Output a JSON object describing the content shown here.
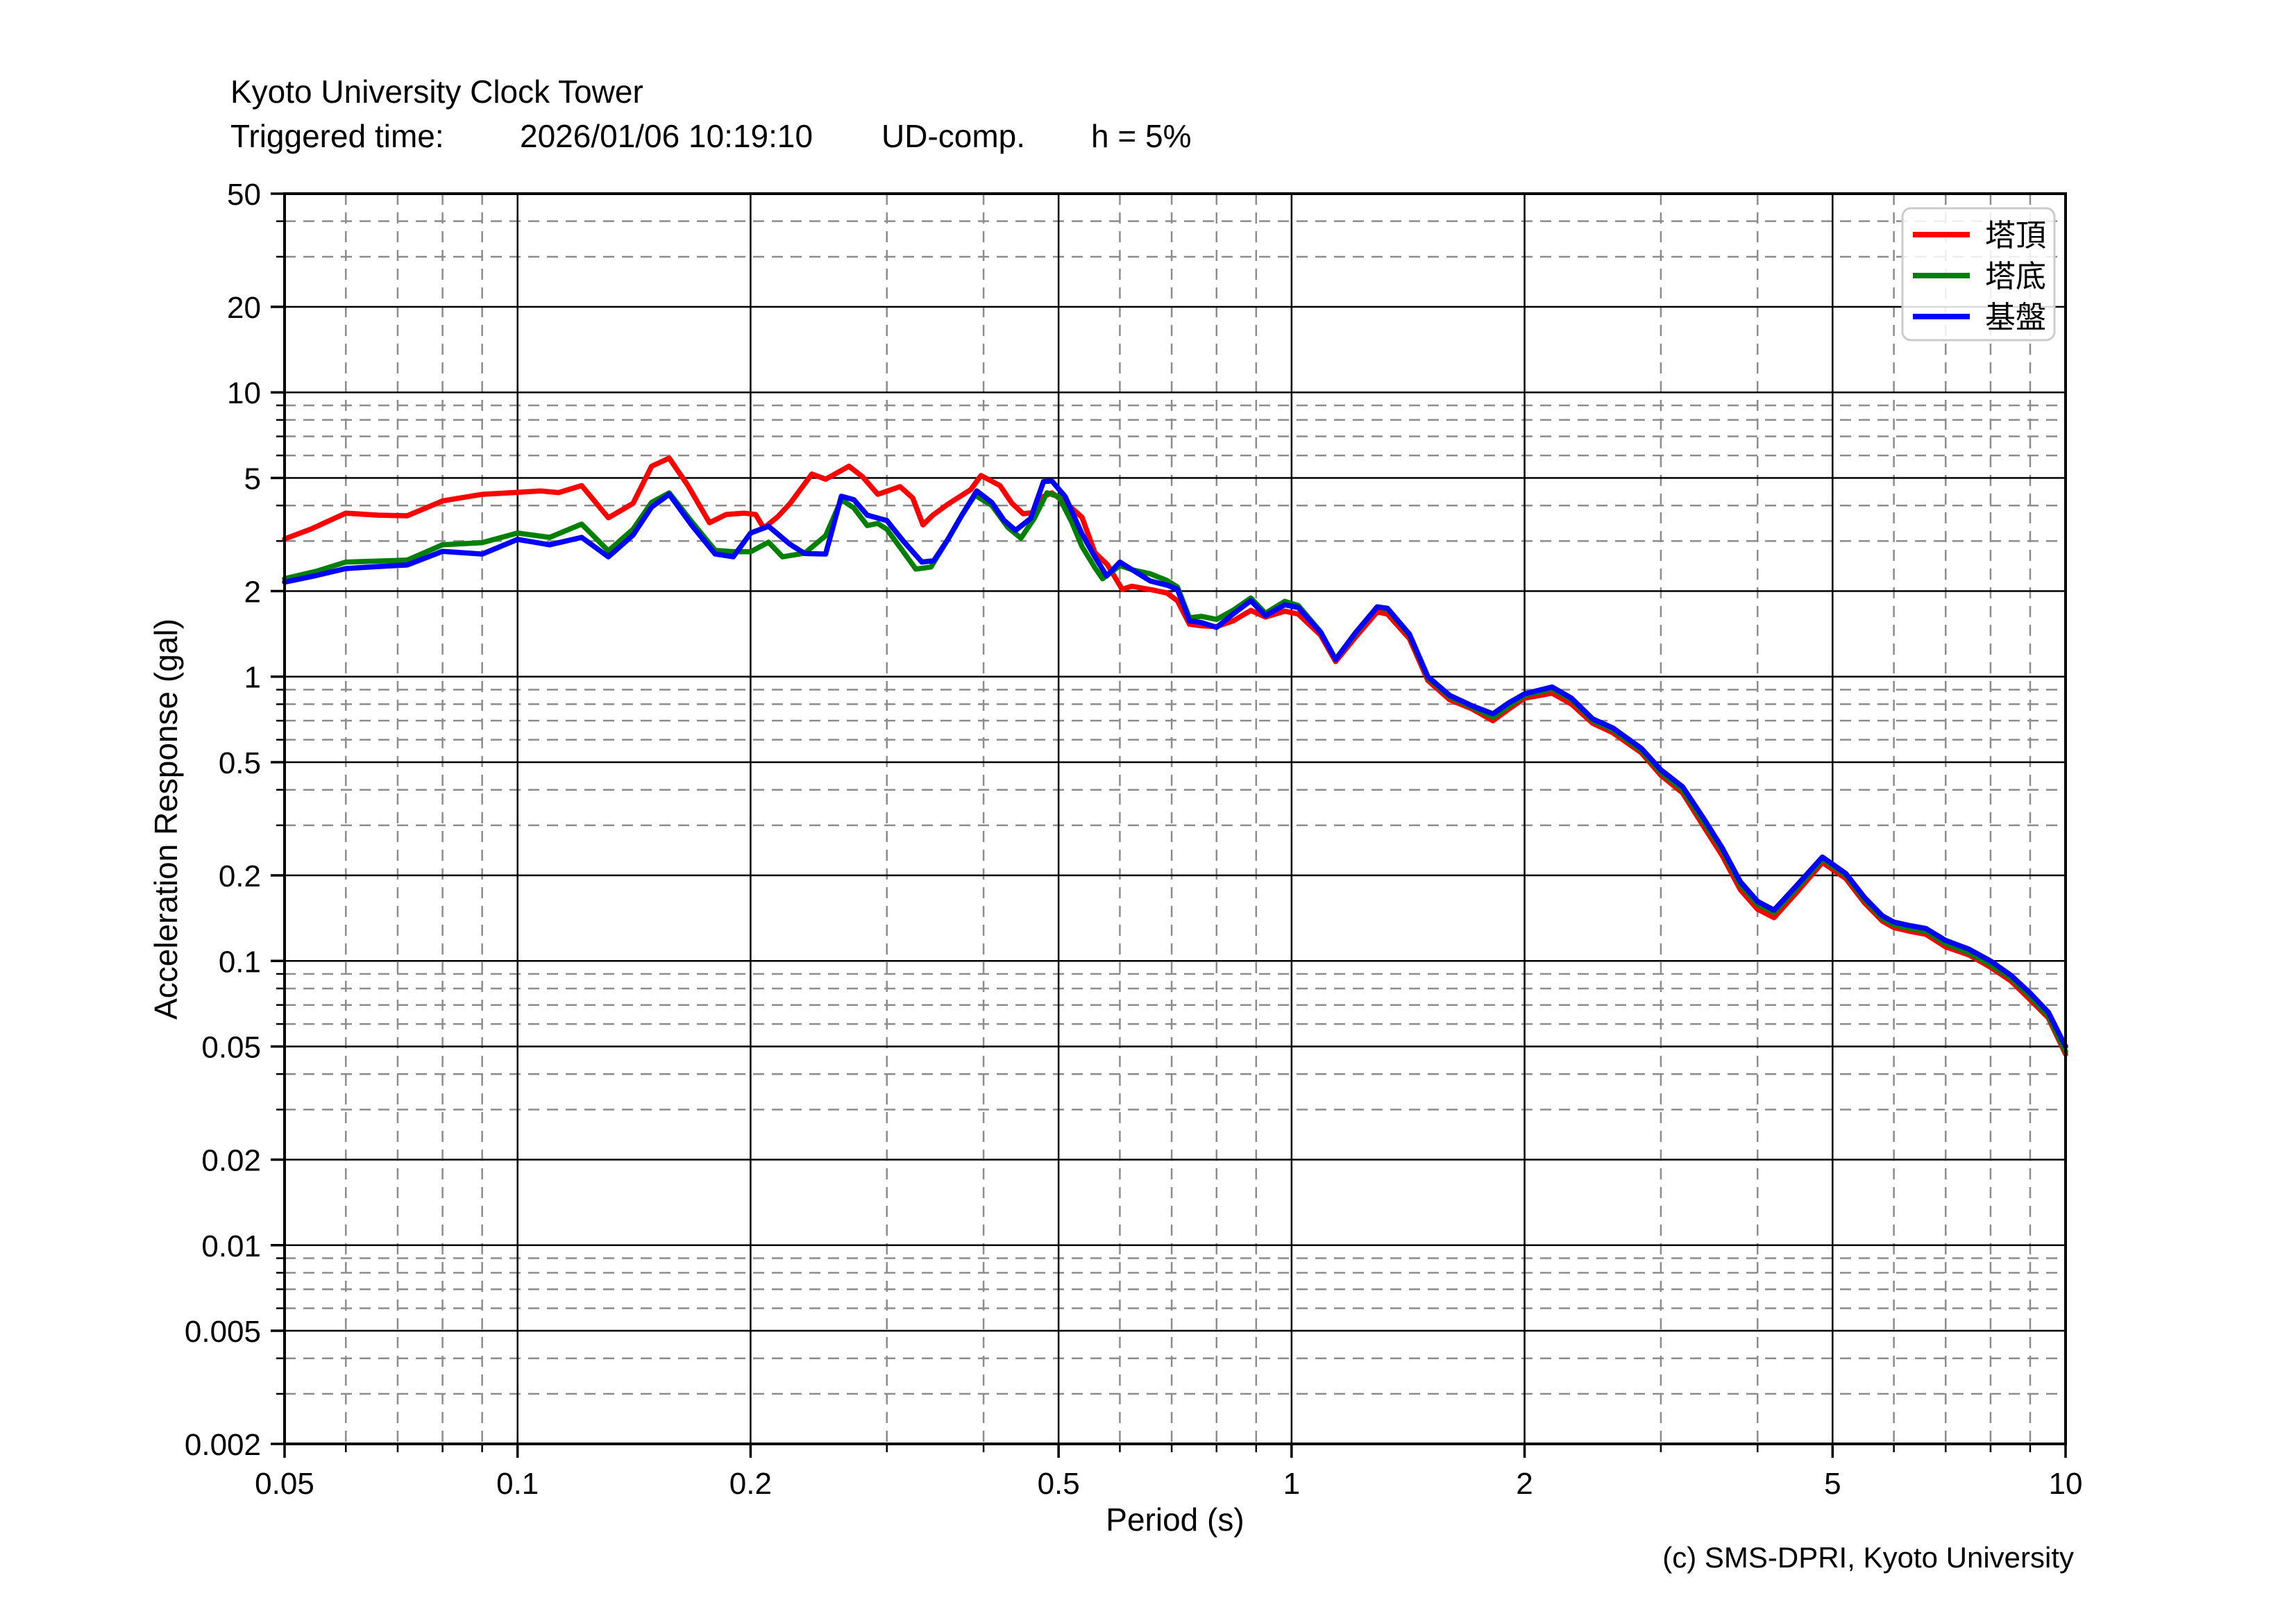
{
  "header": {
    "title": "Kyoto University Clock Tower",
    "triggered_label": "Triggered time:",
    "triggered_time": "2026/01/06 10:19:10",
    "component": "UD-comp.",
    "damping": "h = 5%"
  },
  "footer": {
    "copyright": "(c) SMS-DPRI, Kyoto University"
  },
  "colors": {
    "series_top": "#ff0000",
    "series_bottom": "#008000",
    "series_base": "#0000ff",
    "major_grid": "#000000",
    "minor_grid": "#8c8c8c",
    "legend_border": "#cccccc",
    "background": "#ffffff"
  },
  "chart_data": {
    "type": "line",
    "title": "Kyoto University Clock Tower",
    "xlabel": "Period (s)",
    "ylabel": "Acceleration Response (gal)",
    "x_scale": "log",
    "y_scale": "log",
    "xlim": [
      0.05,
      10
    ],
    "ylim": [
      0.002,
      50
    ],
    "grid": "major solid, minor dashed",
    "legend_position": "upper right",
    "x_major_ticks": [
      0.05,
      0.1,
      0.2,
      0.5,
      1,
      2,
      5,
      10
    ],
    "x_major_labels": [
      "0.05",
      "0.1",
      "0.2",
      "0.5",
      "1",
      "2",
      "5",
      "10"
    ],
    "x_minor_ticks": [
      0.06,
      0.07,
      0.08,
      0.09,
      0.3,
      0.4,
      0.6,
      0.7,
      0.8,
      0.9,
      3,
      4,
      6,
      7,
      8,
      9
    ],
    "y_major_ticks": [
      50,
      20,
      10,
      5,
      2,
      1,
      0.5,
      0.2,
      0.1,
      0.05,
      0.02,
      0.01,
      0.005,
      0.002
    ],
    "y_major_labels": [
      "50",
      "20",
      "10",
      "5",
      "2",
      "1",
      "0.5",
      "0.2",
      "0.1",
      "0.05",
      "0.02",
      "0.01",
      "0.005",
      "0.002"
    ],
    "y_minor_ticks": [
      30,
      40,
      6,
      7,
      8,
      9,
      3,
      4,
      0.6,
      0.7,
      0.8,
      0.9,
      0.3,
      0.4,
      0.06,
      0.07,
      0.08,
      0.09,
      0.03,
      0.04,
      0.006,
      0.007,
      0.008,
      0.009,
      0.003,
      0.004
    ],
    "series": [
      {
        "name": "塔頂",
        "color": "#ff0000",
        "points": [
          [
            0.05,
            3.05
          ],
          [
            0.054,
            3.3
          ],
          [
            0.06,
            3.76
          ],
          [
            0.066,
            3.7
          ],
          [
            0.072,
            3.68
          ],
          [
            0.08,
            4.15
          ],
          [
            0.09,
            4.38
          ],
          [
            0.1,
            4.45
          ],
          [
            0.107,
            4.5
          ],
          [
            0.113,
            4.44
          ],
          [
            0.121,
            4.7
          ],
          [
            0.131,
            3.62
          ],
          [
            0.141,
            4.07
          ],
          [
            0.149,
            5.5
          ],
          [
            0.157,
            5.87
          ],
          [
            0.166,
            4.7
          ],
          [
            0.177,
            3.48
          ],
          [
            0.186,
            3.72
          ],
          [
            0.196,
            3.76
          ],
          [
            0.203,
            3.72
          ],
          [
            0.208,
            3.33
          ],
          [
            0.217,
            3.66
          ],
          [
            0.225,
            4.07
          ],
          [
            0.24,
            5.16
          ],
          [
            0.25,
            4.95
          ],
          [
            0.268,
            5.5
          ],
          [
            0.279,
            5.05
          ],
          [
            0.292,
            4.38
          ],
          [
            0.312,
            4.66
          ],
          [
            0.324,
            4.25
          ],
          [
            0.334,
            3.42
          ],
          [
            0.344,
            3.7
          ],
          [
            0.36,
            4.05
          ],
          [
            0.385,
            4.55
          ],
          [
            0.397,
            5.1
          ],
          [
            0.42,
            4.7
          ],
          [
            0.435,
            4.08
          ],
          [
            0.45,
            3.74
          ],
          [
            0.463,
            3.78
          ],
          [
            0.478,
            4.3
          ],
          [
            0.49,
            4.43
          ],
          [
            0.51,
            4.1
          ],
          [
            0.536,
            3.64
          ],
          [
            0.557,
            2.73
          ],
          [
            0.578,
            2.48
          ],
          [
            0.604,
            2.03
          ],
          [
            0.622,
            2.08
          ],
          [
            0.64,
            2.05
          ],
          [
            0.66,
            2.02
          ],
          [
            0.69,
            1.97
          ],
          [
            0.712,
            1.85
          ],
          [
            0.738,
            1.53
          ],
          [
            0.765,
            1.51
          ],
          [
            0.8,
            1.5
          ],
          [
            0.84,
            1.57
          ],
          [
            0.886,
            1.71
          ],
          [
            0.925,
            1.62
          ],
          [
            0.98,
            1.7
          ],
          [
            1.02,
            1.66
          ],
          [
            1.09,
            1.4
          ],
          [
            1.14,
            1.13
          ],
          [
            1.21,
            1.38
          ],
          [
            1.29,
            1.69
          ],
          [
            1.33,
            1.66
          ],
          [
            1.42,
            1.36
          ],
          [
            1.5,
            0.97
          ],
          [
            1.6,
            0.83
          ],
          [
            1.71,
            0.77
          ],
          [
            1.82,
            0.7
          ],
          [
            1.91,
            0.77
          ],
          [
            2.0,
            0.84
          ],
          [
            2.17,
            0.875
          ],
          [
            2.3,
            0.8
          ],
          [
            2.45,
            0.685
          ],
          [
            2.6,
            0.635
          ],
          [
            2.83,
            0.54
          ],
          [
            3.0,
            0.45
          ],
          [
            3.2,
            0.39
          ],
          [
            3.4,
            0.3
          ],
          [
            3.6,
            0.235
          ],
          [
            3.8,
            0.178
          ],
          [
            4.0,
            0.152
          ],
          [
            4.2,
            0.142
          ],
          [
            4.5,
            0.175
          ],
          [
            4.85,
            0.222
          ],
          [
            5.2,
            0.195
          ],
          [
            5.5,
            0.16
          ],
          [
            5.8,
            0.138
          ],
          [
            6.0,
            0.131
          ],
          [
            6.3,
            0.127
          ],
          [
            6.6,
            0.124
          ],
          [
            7.0,
            0.112
          ],
          [
            7.5,
            0.105
          ],
          [
            8.0,
            0.095
          ],
          [
            8.5,
            0.085
          ],
          [
            9.0,
            0.073
          ],
          [
            9.5,
            0.063
          ],
          [
            10,
            0.047
          ]
        ]
      },
      {
        "name": "塔底",
        "color": "#008000",
        "points": [
          [
            0.05,
            2.21
          ],
          [
            0.055,
            2.35
          ],
          [
            0.06,
            2.53
          ],
          [
            0.066,
            2.55
          ],
          [
            0.072,
            2.57
          ],
          [
            0.08,
            2.91
          ],
          [
            0.09,
            2.96
          ],
          [
            0.1,
            3.2
          ],
          [
            0.11,
            3.09
          ],
          [
            0.121,
            3.44
          ],
          [
            0.131,
            2.77
          ],
          [
            0.141,
            3.3
          ],
          [
            0.149,
            4.1
          ],
          [
            0.157,
            4.43
          ],
          [
            0.168,
            3.5
          ],
          [
            0.18,
            2.78
          ],
          [
            0.19,
            2.75
          ],
          [
            0.2,
            2.75
          ],
          [
            0.211,
            2.97
          ],
          [
            0.22,
            2.64
          ],
          [
            0.235,
            2.72
          ],
          [
            0.25,
            3.13
          ],
          [
            0.262,
            4.19
          ],
          [
            0.272,
            3.92
          ],
          [
            0.283,
            3.4
          ],
          [
            0.292,
            3.46
          ],
          [
            0.3,
            3.3
          ],
          [
            0.315,
            2.75
          ],
          [
            0.327,
            2.39
          ],
          [
            0.342,
            2.43
          ],
          [
            0.36,
            3.05
          ],
          [
            0.375,
            3.7
          ],
          [
            0.39,
            4.35
          ],
          [
            0.41,
            4.0
          ],
          [
            0.43,
            3.35
          ],
          [
            0.447,
            3.07
          ],
          [
            0.465,
            3.6
          ],
          [
            0.483,
            4.43
          ],
          [
            0.5,
            4.3
          ],
          [
            0.52,
            3.5
          ],
          [
            0.536,
            2.87
          ],
          [
            0.557,
            2.42
          ],
          [
            0.57,
            2.21
          ],
          [
            0.6,
            2.46
          ],
          [
            0.625,
            2.37
          ],
          [
            0.657,
            2.3
          ],
          [
            0.69,
            2.18
          ],
          [
            0.712,
            2.07
          ],
          [
            0.738,
            1.61
          ],
          [
            0.765,
            1.63
          ],
          [
            0.8,
            1.59
          ],
          [
            0.84,
            1.71
          ],
          [
            0.886,
            1.89
          ],
          [
            0.925,
            1.67
          ],
          [
            0.98,
            1.84
          ],
          [
            1.02,
            1.78
          ],
          [
            1.09,
            1.44
          ],
          [
            1.14,
            1.15
          ],
          [
            1.21,
            1.42
          ],
          [
            1.29,
            1.76
          ],
          [
            1.33,
            1.73
          ],
          [
            1.42,
            1.4
          ],
          [
            1.5,
            0.99
          ],
          [
            1.6,
            0.85
          ],
          [
            1.71,
            0.78
          ],
          [
            1.82,
            0.72
          ],
          [
            1.91,
            0.79
          ],
          [
            2.0,
            0.86
          ],
          [
            2.17,
            0.905
          ],
          [
            2.3,
            0.83
          ],
          [
            2.45,
            0.7
          ],
          [
            2.6,
            0.65
          ],
          [
            2.83,
            0.55
          ],
          [
            3.0,
            0.46
          ],
          [
            3.2,
            0.4
          ],
          [
            3.4,
            0.31
          ],
          [
            3.6,
            0.245
          ],
          [
            3.8,
            0.185
          ],
          [
            4.0,
            0.158
          ],
          [
            4.2,
            0.148
          ],
          [
            4.5,
            0.181
          ],
          [
            4.85,
            0.228
          ],
          [
            5.2,
            0.2
          ],
          [
            5.5,
            0.164
          ],
          [
            5.8,
            0.141
          ],
          [
            6.0,
            0.134
          ],
          [
            6.3,
            0.13
          ],
          [
            6.6,
            0.127
          ],
          [
            7.0,
            0.115
          ],
          [
            7.5,
            0.107
          ],
          [
            8.0,
            0.097
          ],
          [
            8.5,
            0.087
          ],
          [
            9.0,
            0.075
          ],
          [
            9.5,
            0.064
          ],
          [
            10,
            0.048
          ]
        ]
      },
      {
        "name": "基盤",
        "color": "#0000ff",
        "points": [
          [
            0.05,
            2.15
          ],
          [
            0.055,
            2.27
          ],
          [
            0.06,
            2.4
          ],
          [
            0.066,
            2.44
          ],
          [
            0.072,
            2.47
          ],
          [
            0.08,
            2.76
          ],
          [
            0.09,
            2.7
          ],
          [
            0.1,
            3.04
          ],
          [
            0.11,
            2.91
          ],
          [
            0.121,
            3.09
          ],
          [
            0.131,
            2.64
          ],
          [
            0.141,
            3.15
          ],
          [
            0.149,
            3.95
          ],
          [
            0.157,
            4.38
          ],
          [
            0.168,
            3.4
          ],
          [
            0.18,
            2.7
          ],
          [
            0.19,
            2.64
          ],
          [
            0.2,
            3.2
          ],
          [
            0.211,
            3.38
          ],
          [
            0.225,
            2.92
          ],
          [
            0.235,
            2.71
          ],
          [
            0.25,
            2.7
          ],
          [
            0.262,
            4.31
          ],
          [
            0.272,
            4.19
          ],
          [
            0.283,
            3.7
          ],
          [
            0.3,
            3.54
          ],
          [
            0.315,
            3.0
          ],
          [
            0.333,
            2.53
          ],
          [
            0.345,
            2.56
          ],
          [
            0.36,
            3.05
          ],
          [
            0.375,
            3.7
          ],
          [
            0.392,
            4.5
          ],
          [
            0.41,
            4.1
          ],
          [
            0.425,
            3.55
          ],
          [
            0.44,
            3.27
          ],
          [
            0.46,
            3.6
          ],
          [
            0.478,
            4.85
          ],
          [
            0.49,
            4.88
          ],
          [
            0.51,
            4.3
          ],
          [
            0.536,
            3.18
          ],
          [
            0.557,
            2.64
          ],
          [
            0.577,
            2.26
          ],
          [
            0.6,
            2.53
          ],
          [
            0.625,
            2.36
          ],
          [
            0.657,
            2.17
          ],
          [
            0.69,
            2.1
          ],
          [
            0.712,
            2.03
          ],
          [
            0.738,
            1.57
          ],
          [
            0.765,
            1.55
          ],
          [
            0.8,
            1.49
          ],
          [
            0.84,
            1.66
          ],
          [
            0.886,
            1.85
          ],
          [
            0.925,
            1.64
          ],
          [
            0.98,
            1.79
          ],
          [
            1.02,
            1.75
          ],
          [
            1.09,
            1.43
          ],
          [
            1.14,
            1.15
          ],
          [
            1.21,
            1.43
          ],
          [
            1.29,
            1.76
          ],
          [
            1.33,
            1.74
          ],
          [
            1.42,
            1.41
          ],
          [
            1.5,
            1.0
          ],
          [
            1.6,
            0.86
          ],
          [
            1.71,
            0.79
          ],
          [
            1.82,
            0.74
          ],
          [
            1.91,
            0.81
          ],
          [
            2.0,
            0.87
          ],
          [
            2.17,
            0.92
          ],
          [
            2.3,
            0.84
          ],
          [
            2.45,
            0.71
          ],
          [
            2.6,
            0.66
          ],
          [
            2.83,
            0.56
          ],
          [
            3.0,
            0.47
          ],
          [
            3.2,
            0.41
          ],
          [
            3.4,
            0.32
          ],
          [
            3.6,
            0.25
          ],
          [
            3.8,
            0.19
          ],
          [
            4.0,
            0.162
          ],
          [
            4.2,
            0.151
          ],
          [
            4.5,
            0.185
          ],
          [
            4.85,
            0.232
          ],
          [
            5.2,
            0.203
          ],
          [
            5.5,
            0.167
          ],
          [
            5.8,
            0.144
          ],
          [
            6.0,
            0.137
          ],
          [
            6.3,
            0.133
          ],
          [
            6.6,
            0.13
          ],
          [
            7.0,
            0.118
          ],
          [
            7.5,
            0.11
          ],
          [
            8.0,
            0.1
          ],
          [
            8.5,
            0.089
          ],
          [
            9.0,
            0.077
          ],
          [
            9.5,
            0.066
          ],
          [
            10,
            0.05
          ]
        ]
      }
    ]
  }
}
